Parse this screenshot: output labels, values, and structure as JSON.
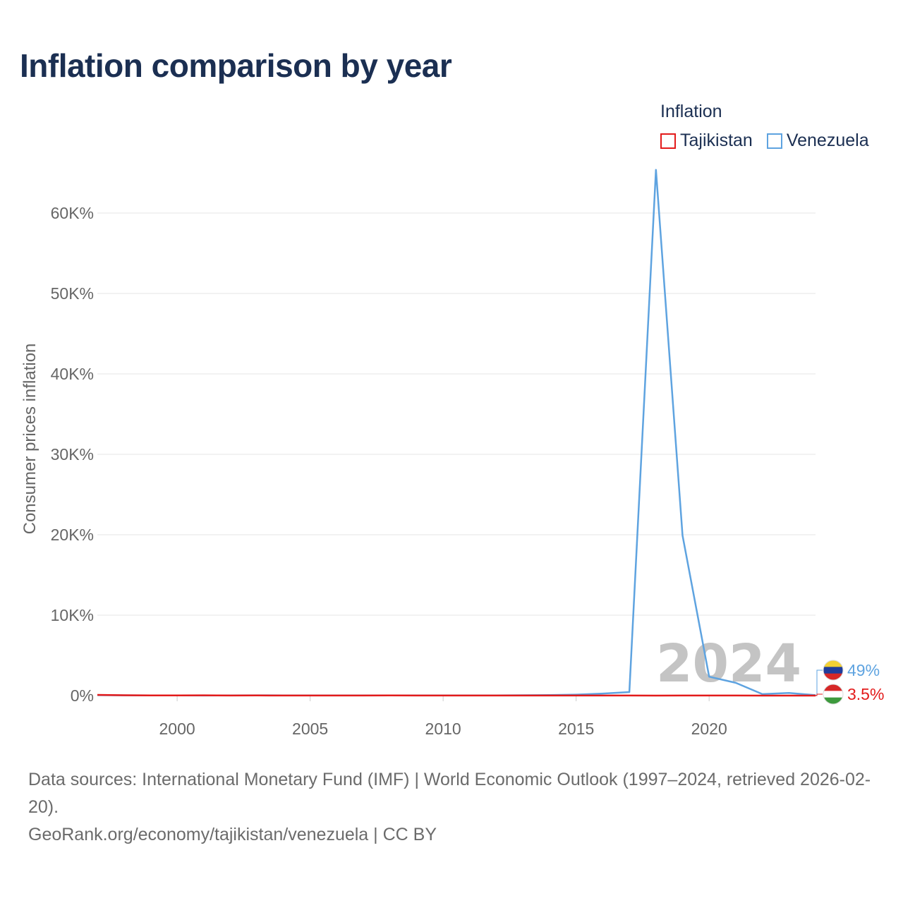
{
  "title": "Inflation comparison by year",
  "legend": {
    "title": "Inflation",
    "items": [
      {
        "label": "Tajikistan",
        "color": "#e31b1b"
      },
      {
        "label": "Venezuela",
        "color": "#5ea3e0"
      }
    ]
  },
  "chart_data": {
    "type": "line",
    "title": "Inflation comparison by year",
    "ylabel": "Consumer prices inflation",
    "xlabel": "",
    "xlim": [
      1997,
      2024
    ],
    "ylim": [
      0,
      65000
    ],
    "x_ticks": [
      2000,
      2005,
      2010,
      2015,
      2020
    ],
    "y_ticks": [
      0,
      10000,
      20000,
      30000,
      40000,
      50000,
      60000
    ],
    "y_tick_labels": [
      "0%",
      "10K%",
      "20K%",
      "30K%",
      "40K%",
      "50K%",
      "60K%"
    ],
    "grid": true,
    "legend_position": "top-right",
    "current_year_label": "2024",
    "x": [
      1997,
      1998,
      1999,
      2000,
      2001,
      2002,
      2003,
      2004,
      2005,
      2006,
      2007,
      2008,
      2009,
      2010,
      2011,
      2012,
      2013,
      2014,
      2015,
      2016,
      2017,
      2018,
      2019,
      2020,
      2021,
      2022,
      2023,
      2024
    ],
    "series": [
      {
        "name": "Tajikistan",
        "color": "#e31b1b",
        "values": [
          88,
          43,
          27,
          24,
          38,
          12,
          16,
          7,
          7,
          10,
          13,
          20,
          6,
          6,
          12,
          6,
          5,
          6,
          6,
          6,
          7,
          4,
          8,
          9,
          8,
          4,
          4,
          3.5
        ],
        "end_label": "3.5%"
      },
      {
        "name": "Venezuela",
        "color": "#5ea3e0",
        "values": [
          50,
          36,
          24,
          16,
          13,
          22,
          31,
          22,
          16,
          14,
          19,
          30,
          27,
          28,
          26,
          21,
          41,
          62,
          122,
          255,
          438,
          65374,
          19906,
          2355,
          1589,
          186,
          337,
          49
        ],
        "end_label": "49%"
      }
    ]
  },
  "footer": {
    "sources": "Data sources: International Monetary Fund (IMF) | World Economic Outlook (1997–2024, retrieved 2026-02-20).",
    "credit": "GeoRank.org/economy/tajikistan/venezuela | CC BY"
  }
}
